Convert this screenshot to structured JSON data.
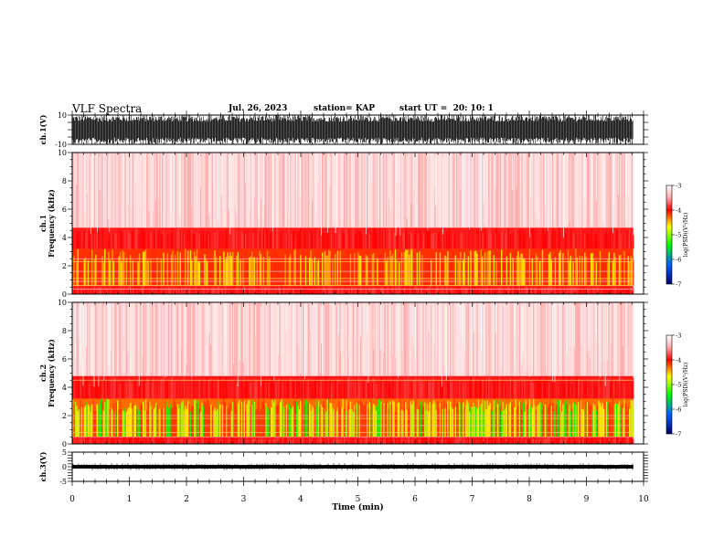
{
  "header": {
    "title": "VLF Spectra",
    "date": "Jul. 26, 2023",
    "station": "station= KAP",
    "start_ut": "start UT =  20: 10: 1"
  },
  "chart_data": [
    {
      "type": "line",
      "panel": "ch1-waveform",
      "ylabel": "ch.1(V)",
      "ylim": [
        -10,
        10
      ],
      "y_ticks": [
        "10",
        "-10"
      ],
      "x_range": [
        0,
        10
      ],
      "data_end_min": 9.82,
      "description_values": {
        "amplitude_clipped_at": [
          -10,
          10
        ]
      }
    },
    {
      "type": "heatmap",
      "panel": "ch1-spectrogram",
      "ylabel": "ch.1\nFrequency (kHz)",
      "ylabel_lines": [
        "ch.1",
        "Frequency (kHz)"
      ],
      "ylim": [
        0,
        10
      ],
      "y_ticks": [
        "0",
        "2",
        "4",
        "6",
        "8",
        "10"
      ],
      "x_range": [
        0,
        10
      ],
      "data_end_min": 9.82,
      "colorbar": {
        "label": "log(PSD)(V²/Hz)",
        "range": [
          -7,
          -3
        ],
        "ticks": [
          "-3",
          "-4",
          "-5",
          "-6",
          "-7"
        ]
      },
      "bands": [
        {
          "f_khz": [
            0,
            0.6
          ],
          "level": "red"
        },
        {
          "f_khz": [
            0.6,
            3.2
          ],
          "level": "yellow"
        },
        {
          "f_khz": [
            3.2,
            4.7
          ],
          "level": "red"
        },
        {
          "f_khz": [
            4.7,
            10
          ],
          "level": "pink"
        }
      ],
      "lines_khz": [
        0.35,
        0.6,
        0.9,
        1.1,
        1.6,
        2.3,
        2.5
      ]
    },
    {
      "type": "heatmap",
      "panel": "ch2-spectrogram",
      "ylabel": "ch.2\nFrequency (kHz)",
      "ylabel_lines": [
        "ch.2",
        "Frequency (kHz)"
      ],
      "ylim": [
        0,
        10
      ],
      "y_ticks": [
        "0",
        "2",
        "4",
        "6",
        "8",
        "10"
      ],
      "x_range": [
        0,
        10
      ],
      "data_end_min": 9.82,
      "colorbar": {
        "label": "log(PSD)(V²/Hz)",
        "range": [
          -7,
          -3
        ],
        "ticks": [
          "-3",
          "-4",
          "-5",
          "-6",
          "-7"
        ]
      },
      "bands": [
        {
          "f_khz": [
            0,
            0.5
          ],
          "level": "red"
        },
        {
          "f_khz": [
            0.5,
            3.2
          ],
          "level": "green"
        },
        {
          "f_khz": [
            3.2,
            4.8
          ],
          "level": "red"
        },
        {
          "f_khz": [
            4.8,
            10
          ],
          "level": "pink"
        }
      ],
      "lines_khz": [
        0.5,
        0.8,
        1.3,
        1.8,
        2.0,
        4.5
      ]
    },
    {
      "type": "line",
      "panel": "ch3-waveform",
      "ylabel": "ch.3(V)",
      "ylim": [
        -5,
        5
      ],
      "y_ticks": [
        "5",
        "0",
        "-5"
      ],
      "x_range": [
        0,
        10
      ],
      "data_end_min": 9.82,
      "signal_band_v": [
        -0.6,
        0.6
      ]
    }
  ],
  "x_axis": {
    "label": "Time (min)",
    "ticks": [
      "0",
      "1",
      "2",
      "3",
      "4",
      "5",
      "6",
      "7",
      "8",
      "9",
      "10"
    ]
  }
}
